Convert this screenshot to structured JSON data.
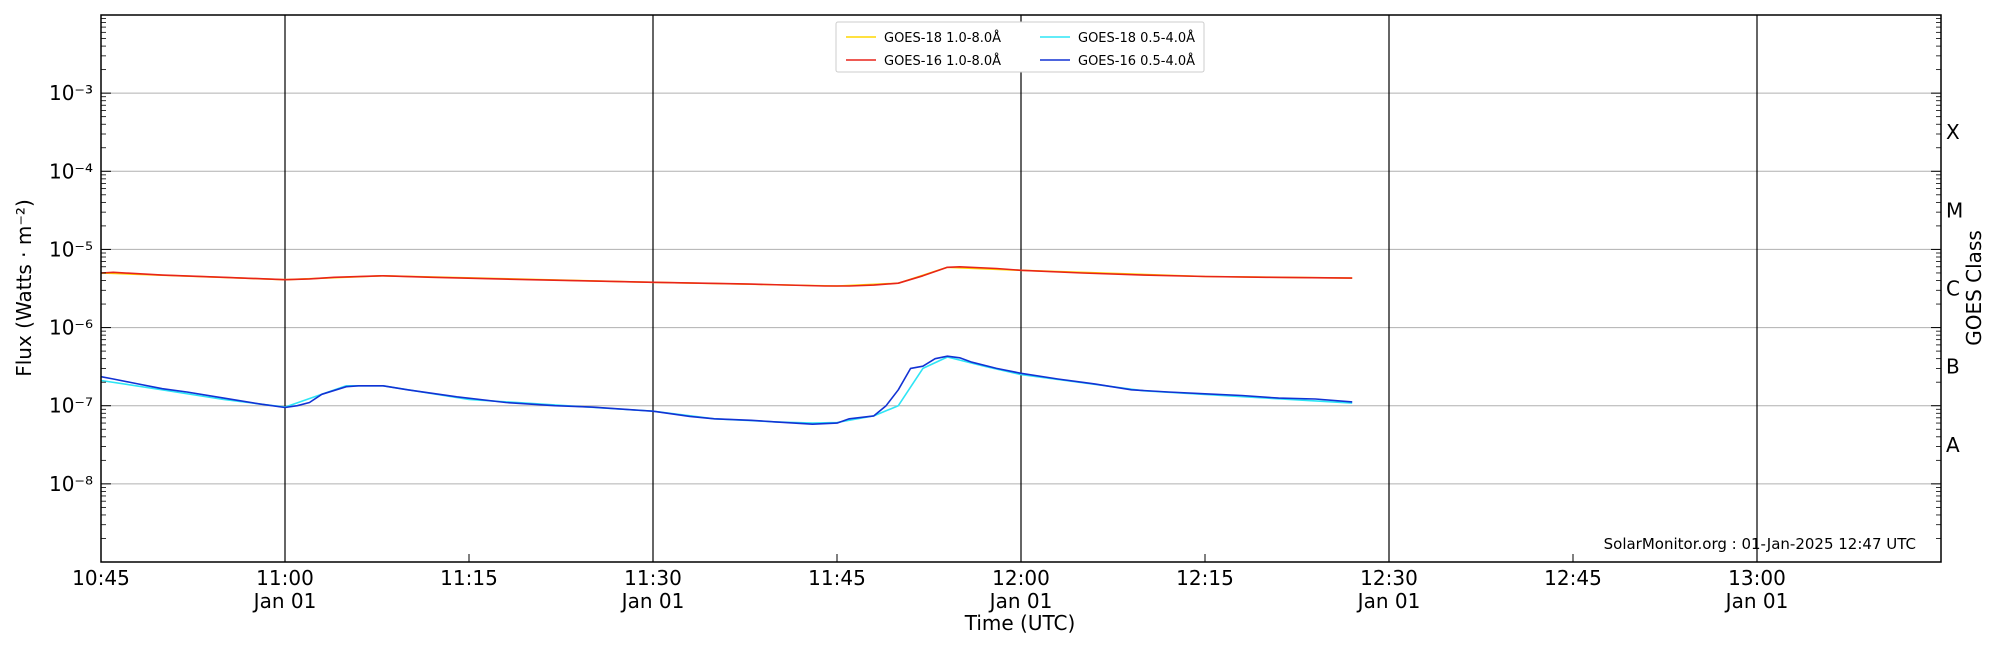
{
  "chart_data": {
    "type": "line",
    "xlabel": "Time (UTC)",
    "ylabel": "Flux (Watts · m⁻²)",
    "ylabel_right": "GOES Class",
    "y_scale": "log",
    "ylim": [
      1e-09,
      0.01
    ],
    "xlim": [
      "10:45",
      "13:15"
    ],
    "grid": "horizontal",
    "legend_position": "top-center",
    "credit": "SolarMonitor.org : 01-Jan-2025 12:47 UTC",
    "y_ticks": [
      {
        "value": 1e-08,
        "label": "10⁻⁸"
      },
      {
        "value": 1e-07,
        "label": "10⁻⁷"
      },
      {
        "value": 1e-06,
        "label": "10⁻⁶"
      },
      {
        "value": 1e-05,
        "label": "10⁻⁵"
      },
      {
        "value": 0.0001,
        "label": "10⁻⁴"
      },
      {
        "value": 0.001,
        "label": "10⁻³"
      }
    ],
    "x_ticks": [
      {
        "time": "10:45",
        "label": "10:45",
        "date": ""
      },
      {
        "time": "11:00",
        "label": "11:00",
        "date": "Jan 01"
      },
      {
        "time": "11:15",
        "label": "11:15",
        "date": ""
      },
      {
        "time": "11:30",
        "label": "11:30",
        "date": "Jan 01"
      },
      {
        "time": "11:45",
        "label": "11:45",
        "date": ""
      },
      {
        "time": "12:00",
        "label": "12:00",
        "date": "Jan 01"
      },
      {
        "time": "12:15",
        "label": "12:15",
        "date": ""
      },
      {
        "time": "12:30",
        "label": "12:30",
        "date": "Jan 01"
      },
      {
        "time": "12:45",
        "label": "12:45",
        "date": ""
      },
      {
        "time": "13:00",
        "label": "13:00",
        "date": "Jan 01"
      }
    ],
    "vertical_lines": [
      "11:00",
      "11:30",
      "12:00",
      "12:30",
      "13:00"
    ],
    "goes_classes": [
      {
        "label": "A",
        "value": 3.16e-08
      },
      {
        "label": "B",
        "value": 3.16e-07
      },
      {
        "label": "C",
        "value": 3.16e-06
      },
      {
        "label": "M",
        "value": 3.16e-05
      },
      {
        "label": "X",
        "value": 0.000316
      }
    ],
    "series": [
      {
        "name": "GOES-18 1.0-8.0Å",
        "color": "#FFD700",
        "points": [
          [
            "10:45",
            5e-06
          ],
          [
            "11:00",
            4.1e-06
          ],
          [
            "11:08",
            4.6e-06
          ],
          [
            "11:30",
            3.8e-06
          ],
          [
            "11:45",
            3.4e-06
          ],
          [
            "11:50",
            3.7e-06
          ],
          [
            "11:54",
            5.9e-06
          ],
          [
            "12:00",
            5.4e-06
          ],
          [
            "12:15",
            4.5e-06
          ],
          [
            "12:27",
            4.3e-06
          ]
        ]
      },
      {
        "name": "GOES-16 1.0-8.0Å",
        "color": "#E8241A",
        "points": [
          [
            "10:45",
            5e-06
          ],
          [
            "10:46",
            5.1e-06
          ],
          [
            "10:50",
            4.7e-06
          ],
          [
            "10:55",
            4.4e-06
          ],
          [
            "11:00",
            4.1e-06
          ],
          [
            "11:02",
            4.2e-06
          ],
          [
            "11:04",
            4.4e-06
          ],
          [
            "11:08",
            4.6e-06
          ],
          [
            "11:12",
            4.4e-06
          ],
          [
            "11:20",
            4.1e-06
          ],
          [
            "11:30",
            3.8e-06
          ],
          [
            "11:38",
            3.6e-06
          ],
          [
            "11:44",
            3.4e-06
          ],
          [
            "11:46",
            3.4e-06
          ],
          [
            "11:48",
            3.5e-06
          ],
          [
            "11:50",
            3.7e-06
          ],
          [
            "11:52",
            4.6e-06
          ],
          [
            "11:54",
            5.9e-06
          ],
          [
            "11:55",
            6e-06
          ],
          [
            "11:58",
            5.7e-06
          ],
          [
            "12:00",
            5.4e-06
          ],
          [
            "12:05",
            5e-06
          ],
          [
            "12:10",
            4.7e-06
          ],
          [
            "12:15",
            4.5e-06
          ],
          [
            "12:20",
            4.4e-06
          ],
          [
            "12:27",
            4.3e-06
          ]
        ]
      },
      {
        "name": "GOES-18 0.5-4.0Å",
        "color": "#2EE5F5",
        "points": [
          [
            "10:45",
            2.1e-07
          ],
          [
            "10:50",
            1.6e-07
          ],
          [
            "10:55",
            1.2e-07
          ],
          [
            "11:00",
            9.6e-08
          ],
          [
            "11:03",
            1.4e-07
          ],
          [
            "11:05",
            1.8e-07
          ],
          [
            "11:08",
            1.8e-07
          ],
          [
            "11:15",
            1.2e-07
          ],
          [
            "11:30",
            8.5e-08
          ],
          [
            "11:35",
            6.8e-08
          ],
          [
            "11:40",
            6.2e-08
          ],
          [
            "11:43",
            6e-08
          ],
          [
            "11:45",
            6.1e-08
          ],
          [
            "11:48",
            7.4e-08
          ],
          [
            "11:50",
            1e-07
          ],
          [
            "11:52",
            3e-07
          ],
          [
            "11:54",
            4.2e-07
          ],
          [
            "11:57",
            3.2e-07
          ],
          [
            "12:00",
            2.5e-07
          ],
          [
            "12:10",
            1.55e-07
          ],
          [
            "12:20",
            1.25e-07
          ],
          [
            "12:27",
            1.08e-07
          ]
        ]
      },
      {
        "name": "GOES-16 0.5-4.0Å",
        "color": "#1232D4",
        "points": [
          [
            "10:45",
            2.35e-07
          ],
          [
            "10:46",
            2.2e-07
          ],
          [
            "10:48",
            1.9e-07
          ],
          [
            "10:50",
            1.65e-07
          ],
          [
            "10:52",
            1.5e-07
          ],
          [
            "10:55",
            1.25e-07
          ],
          [
            "10:58",
            1.05e-07
          ],
          [
            "11:00",
            9.5e-08
          ],
          [
            "11:01",
            1e-07
          ],
          [
            "11:02",
            1.1e-07
          ],
          [
            "11:03",
            1.4e-07
          ],
          [
            "11:05",
            1.75e-07
          ],
          [
            "11:06",
            1.8e-07
          ],
          [
            "11:08",
            1.8e-07
          ],
          [
            "11:10",
            1.6e-07
          ],
          [
            "11:14",
            1.3e-07
          ],
          [
            "11:18",
            1.1e-07
          ],
          [
            "11:22",
            1e-07
          ],
          [
            "11:25",
            9.6e-08
          ],
          [
            "11:30",
            8.5e-08
          ],
          [
            "11:33",
            7.3e-08
          ],
          [
            "11:35",
            6.8e-08
          ],
          [
            "11:38",
            6.5e-08
          ],
          [
            "11:40",
            6.2e-08
          ],
          [
            "11:43",
            5.8e-08
          ],
          [
            "11:45",
            6e-08
          ],
          [
            "11:46",
            6.8e-08
          ],
          [
            "11:48",
            7.4e-08
          ],
          [
            "11:49",
            1e-07
          ],
          [
            "11:50",
            1.6e-07
          ],
          [
            "11:51",
            3e-07
          ],
          [
            "11:52",
            3.2e-07
          ],
          [
            "11:53",
            4e-07
          ],
          [
            "11:54",
            4.3e-07
          ],
          [
            "11:55",
            4.1e-07
          ],
          [
            "11:56",
            3.6e-07
          ],
          [
            "11:58",
            3e-07
          ],
          [
            "12:00",
            2.6e-07
          ],
          [
            "12:03",
            2.2e-07
          ],
          [
            "12:06",
            1.9e-07
          ],
          [
            "12:09",
            1.6e-07
          ],
          [
            "12:12",
            1.5e-07
          ],
          [
            "12:15",
            1.42e-07
          ],
          [
            "12:18",
            1.35e-07
          ],
          [
            "12:21",
            1.25e-07
          ],
          [
            "12:24",
            1.22e-07
          ],
          [
            "12:27",
            1.12e-07
          ]
        ]
      }
    ]
  }
}
